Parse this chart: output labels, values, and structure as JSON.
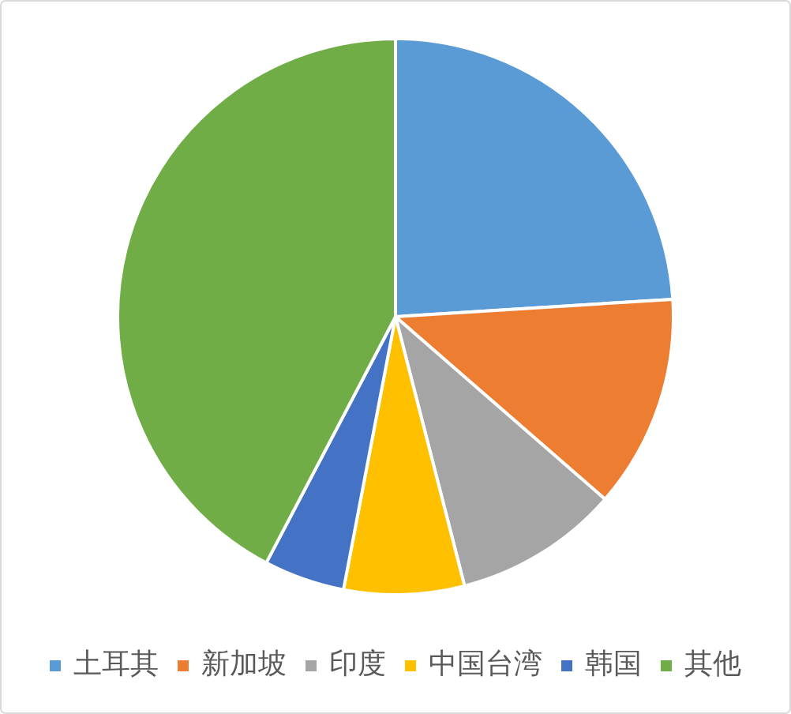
{
  "chart_data": {
    "type": "pie",
    "categories": [
      "土耳其",
      "新加坡",
      "印度",
      "中国台湾",
      "韩国",
      "其他"
    ],
    "values": [
      24.0,
      12.4,
      9.6,
      7.0,
      4.7,
      42.3
    ],
    "colors": [
      "#5b9bd5",
      "#ed7d31",
      "#a5a5a5",
      "#ffc000",
      "#4472c4",
      "#70ad47"
    ],
    "legend": "bottom"
  }
}
